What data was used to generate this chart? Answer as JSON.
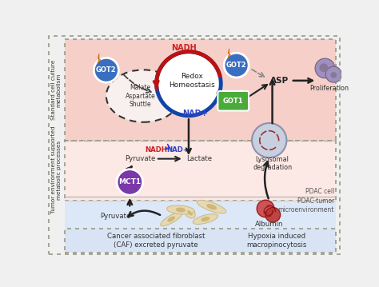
{
  "fig_width": 4.74,
  "fig_height": 3.59,
  "dpi": 100,
  "top_bg": "#f5cfc8",
  "mid_bg": "#fce8e4",
  "bot_bg": "#dce8f8",
  "footer_bg": "#d8e4f4",
  "got2_color": "#3a6ec0",
  "got1_color": "#4aaa3a",
  "mct1_color": "#7a38a8",
  "nadh_color": "#cc2222",
  "nadplus_color": "#3344cc",
  "arrow_dark": "#222222",
  "redox_blue": "#1144aa",
  "redox_red": "#bb1111",
  "cell_purple": "#a090c0",
  "lyso_gray": "#b8c4d4",
  "alb_red": "#cc3333",
  "left_top": "Standard cell culture\nmetabolism",
  "left_bot": "Tumor environment supported\nmetabolic processes",
  "footer_left": "Cancer associated fibroblast\n(CAF) excreted pyruvate",
  "footer_right": "Hypoxia induced\nmacropinocytosis",
  "pdac_cell": "PDAC cell",
  "pdac_tumor": "PDAC tumor\nmicroenvironment"
}
